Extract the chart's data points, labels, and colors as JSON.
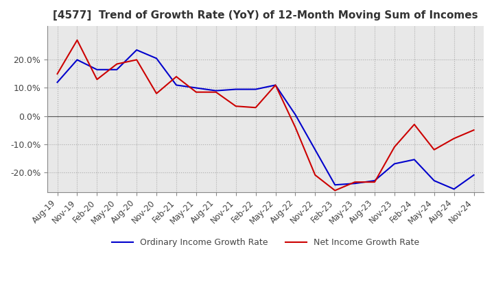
{
  "title": "[4577]  Trend of Growth Rate (YoY) of 12-Month Moving Sum of Incomes",
  "title_fontsize": 11,
  "ylim": [
    -27,
    32
  ],
  "yticks": [
    -20,
    -10,
    0,
    10,
    20
  ],
  "background_color": "#ffffff",
  "plot_bg_color": "#e8e8e8",
  "grid_color": "#aaaaaa",
  "line1_color": "#0000cc",
  "line2_color": "#cc0000",
  "line1_label": "Ordinary Income Growth Rate",
  "line2_label": "Net Income Growth Rate",
  "dates": [
    "Aug-19",
    "Nov-19",
    "Feb-20",
    "May-20",
    "Aug-20",
    "Nov-20",
    "Feb-21",
    "May-21",
    "Aug-21",
    "Nov-21",
    "Feb-22",
    "May-22",
    "Aug-22",
    "Nov-22",
    "Feb-23",
    "May-23",
    "Aug-23",
    "Nov-23",
    "Feb-24",
    "May-24",
    "Aug-24",
    "Nov-24"
  ],
  "ordinary_income": [
    12.0,
    20.0,
    16.5,
    16.5,
    23.5,
    20.5,
    11.0,
    10.0,
    9.0,
    9.5,
    9.5,
    11.0,
    0.5,
    -12.0,
    -24.5,
    -24.0,
    -23.0,
    -17.0,
    -15.5,
    -23.0,
    -26.0,
    -21.0
  ],
  "net_income": [
    15.0,
    27.0,
    13.0,
    18.5,
    20.0,
    8.0,
    14.0,
    8.5,
    8.5,
    3.5,
    3.0,
    11.0,
    -4.0,
    -21.0,
    -26.5,
    -23.5,
    -23.5,
    -11.0,
    -3.0,
    -12.0,
    -8.0,
    -5.0
  ]
}
